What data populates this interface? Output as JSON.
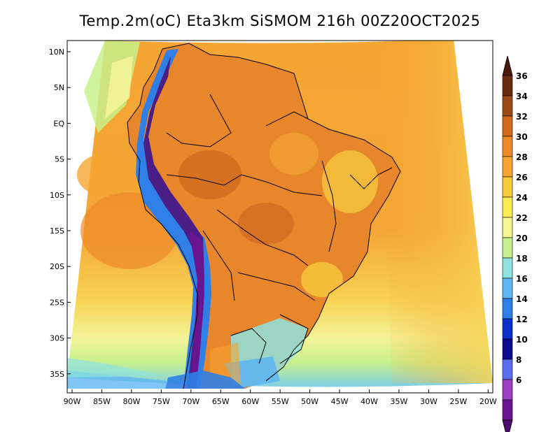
{
  "title": "Temp.2m(oC) Eta3km SiSMOM 216h 00Z20OCT2025",
  "lat_labels": [
    "10N",
    "5N",
    "EQ",
    "5S",
    "10S",
    "15S",
    "20S",
    "25S",
    "30S",
    "35S"
  ],
  "lon_labels": [
    "90W",
    "85W",
    "80W",
    "75W",
    "70W",
    "65W",
    "60W",
    "55W",
    "50W",
    "45W",
    "40W",
    "35W",
    "30W",
    "25W",
    "20W"
  ],
  "colorbar": {
    "labels": [
      "36",
      "34",
      "32",
      "30",
      "28",
      "26",
      "24",
      "22",
      "20",
      "18",
      "16",
      "14",
      "12",
      "10",
      "8",
      "6"
    ],
    "colors": [
      "#6b2a10",
      "#9a4a17",
      "#cf6a1f",
      "#ee8a2a",
      "#f5a532",
      "#f7c93f",
      "#fbeb55",
      "#f5f594",
      "#c7f08c",
      "#8fe3df",
      "#5fb6f2",
      "#2f7fe6",
      "#0b2fc7",
      "#0b0b8f",
      "#5a6ef0",
      "#9a3fc2",
      "#6b148f"
    ],
    "top_color": "#4a1a0a",
    "bottom_color": "#4c0a6e"
  },
  "legend_colors": {
    "ocean_warm": "#f5a532",
    "ocean_hot": "#ee8a2a",
    "land_hot": "#e8862c",
    "andes_cold": "#4a1e86"
  }
}
